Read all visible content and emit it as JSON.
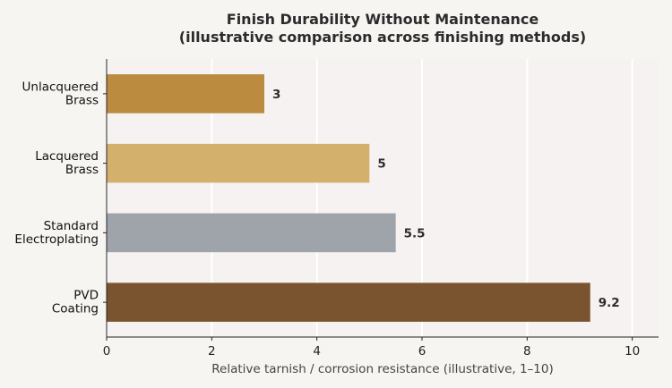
{
  "chart_data": {
    "type": "bar",
    "orientation": "horizontal",
    "title": "Finish Durability Without Maintenance",
    "subtitle": "(illustrative comparison across finishing methods)",
    "categories": [
      [
        "Unlacquered",
        "Brass"
      ],
      [
        "Lacquered",
        "Brass"
      ],
      [
        "Standard",
        "Electroplating"
      ],
      [
        "PVD",
        "Coating"
      ]
    ],
    "values": [
      3,
      5,
      5.5,
      9.2
    ],
    "value_labels": [
      "3",
      "5",
      "5.5",
      "9.2"
    ],
    "colors": [
      "#bb8b3f",
      "#d4b06d",
      "#9ea4aa",
      "#7a542e"
    ],
    "xlabel": "Relative tarnish / corrosion resistance (illustrative, 1–10)",
    "ylabel": "",
    "xlim": [
      0,
      10.5
    ],
    "xticks": [
      0,
      2,
      4,
      6,
      8,
      10
    ],
    "grid": "vertical",
    "legend": "none",
    "plot_background": "#f6f2f1",
    "page_background": "#f6f5f2"
  }
}
